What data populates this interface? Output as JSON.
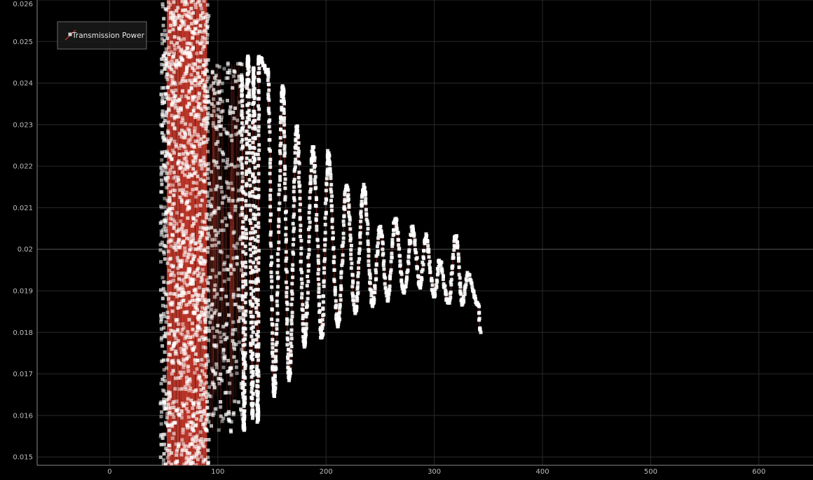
{
  "chart_data": {
    "type": "scatter",
    "title": "",
    "xlabel": "",
    "ylabel": "",
    "xlim": [
      -67,
      650
    ],
    "ylim": [
      0.0148,
      0.026
    ],
    "x_ticks": [
      0,
      100,
      200,
      300,
      400,
      500,
      600
    ],
    "y_ticks": [
      0.015,
      0.016,
      0.017,
      0.018,
      0.019,
      0.02,
      0.021,
      0.022,
      0.023,
      0.024,
      0.025,
      0.026
    ],
    "grid": true,
    "legend_position": "top-left",
    "legend": [
      "Transmission Power"
    ],
    "series": [
      {
        "name": "Transmission Power",
        "line_color": "#c0392b",
        "marker_color": "#ffffff",
        "marker": "square",
        "segments": [
          {
            "x_start": 47,
            "x_end": 92,
            "y_min": 0.0148,
            "y_max": 0.026,
            "note_type": "dense-noise"
          },
          {
            "x_start": 92,
            "x_end": 125,
            "y_min": 0.0156,
            "y_max": 0.0245,
            "note_type": "sparse-noise"
          }
        ],
        "envelope_peaks": [
          {
            "x": 122,
            "y": 0.0241
          },
          {
            "x": 128,
            "y": 0.0246
          },
          {
            "x": 133,
            "y": 0.0243
          },
          {
            "x": 138,
            "y": 0.0246
          },
          {
            "x": 146,
            "y": 0.0243
          },
          {
            "x": 160,
            "y": 0.0239
          },
          {
            "x": 173,
            "y": 0.0229
          },
          {
            "x": 188,
            "y": 0.0224
          },
          {
            "x": 202,
            "y": 0.0223
          },
          {
            "x": 219,
            "y": 0.0215
          },
          {
            "x": 235,
            "y": 0.0215
          },
          {
            "x": 250,
            "y": 0.0205
          },
          {
            "x": 264,
            "y": 0.0207
          },
          {
            "x": 280,
            "y": 0.0205
          },
          {
            "x": 292,
            "y": 0.0203
          },
          {
            "x": 305,
            "y": 0.0197
          },
          {
            "x": 320,
            "y": 0.0203
          },
          {
            "x": 331,
            "y": 0.0194
          },
          {
            "x": 340,
            "y": 0.0187
          }
        ],
        "envelope_troughs": [
          {
            "x": 124,
            "y": 0.0157
          },
          {
            "x": 132,
            "y": 0.016
          },
          {
            "x": 137,
            "y": 0.0159
          },
          {
            "x": 152,
            "y": 0.0165
          },
          {
            "x": 166,
            "y": 0.0169
          },
          {
            "x": 180,
            "y": 0.0177
          },
          {
            "x": 196,
            "y": 0.0179
          },
          {
            "x": 211,
            "y": 0.0182
          },
          {
            "x": 227,
            "y": 0.0185
          },
          {
            "x": 243,
            "y": 0.0187
          },
          {
            "x": 257,
            "y": 0.0188
          },
          {
            "x": 272,
            "y": 0.019
          },
          {
            "x": 287,
            "y": 0.0191
          },
          {
            "x": 300,
            "y": 0.0189
          },
          {
            "x": 313,
            "y": 0.0187
          },
          {
            "x": 326,
            "y": 0.0187
          },
          {
            "x": 343,
            "y": 0.018
          }
        ]
      }
    ]
  }
}
